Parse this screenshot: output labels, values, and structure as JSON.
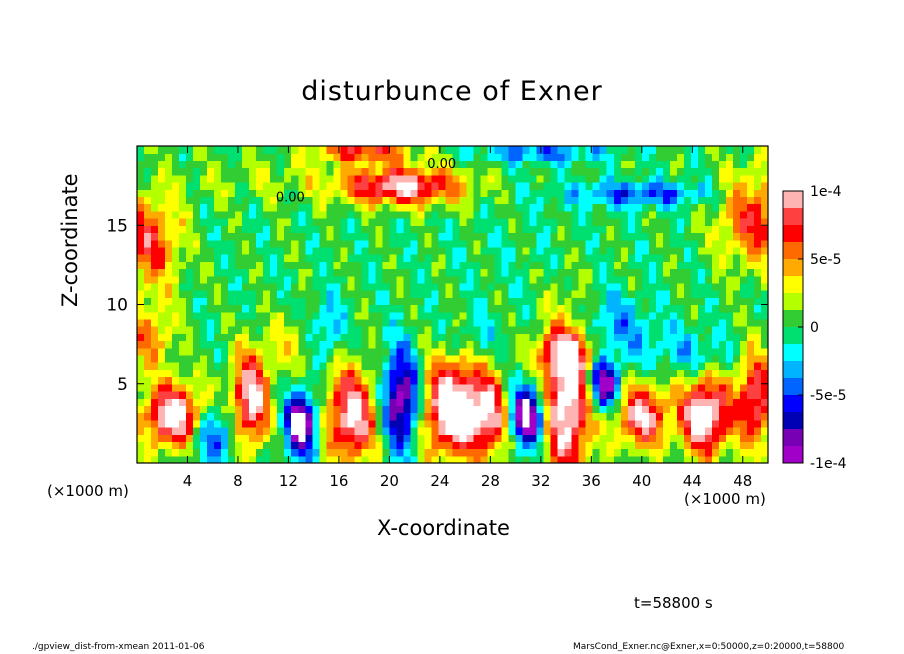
{
  "chart_data": {
    "type": "heatmap",
    "title": "disturbunce of Exner",
    "xlabel": "X-coordinate",
    "ylabel": "Z-coordinate",
    "x_unit_left": "(×1000 m)",
    "x_unit_right": "(×1000 m)",
    "xlim": [
      0,
      50
    ],
    "ylim": [
      0,
      20
    ],
    "x_ticks": [
      4,
      8,
      12,
      16,
      20,
      24,
      28,
      32,
      36,
      40,
      44,
      48
    ],
    "y_ticks": [
      5,
      10,
      15
    ],
    "colorbar": {
      "range": [
        -0.0001,
        0.0001
      ],
      "tick_values": [
        0.0001,
        5e-05,
        0,
        -5e-05,
        -0.0001
      ],
      "tick_labels": [
        "1e-4",
        "5e-5",
        "0",
        "-5e-5",
        "-1e-4"
      ],
      "colors": [
        "#ffb4b4",
        "#ff4040",
        "#ff0000",
        "#ff6a00",
        "#ffaa00",
        "#ffff00",
        "#b4ff00",
        "#32cd32",
        "#00e070",
        "#00ffff",
        "#00b4ff",
        "#0064ff",
        "#0000ff",
        "#0000b4",
        "#7800b4",
        "#a000c8"
      ]
    },
    "contour_labels": [
      "0.00",
      "0.00"
    ],
    "time_label": "t=58800 s"
  },
  "colors": {
    "background": "#ffffff",
    "axis": "#000000"
  },
  "footer": {
    "left": "./gpview_dist-from-xmean 2011-01-06",
    "right": "MarsCond_Exner.nc@Exner,x=0:50000,z=0:20000,t=58800"
  }
}
